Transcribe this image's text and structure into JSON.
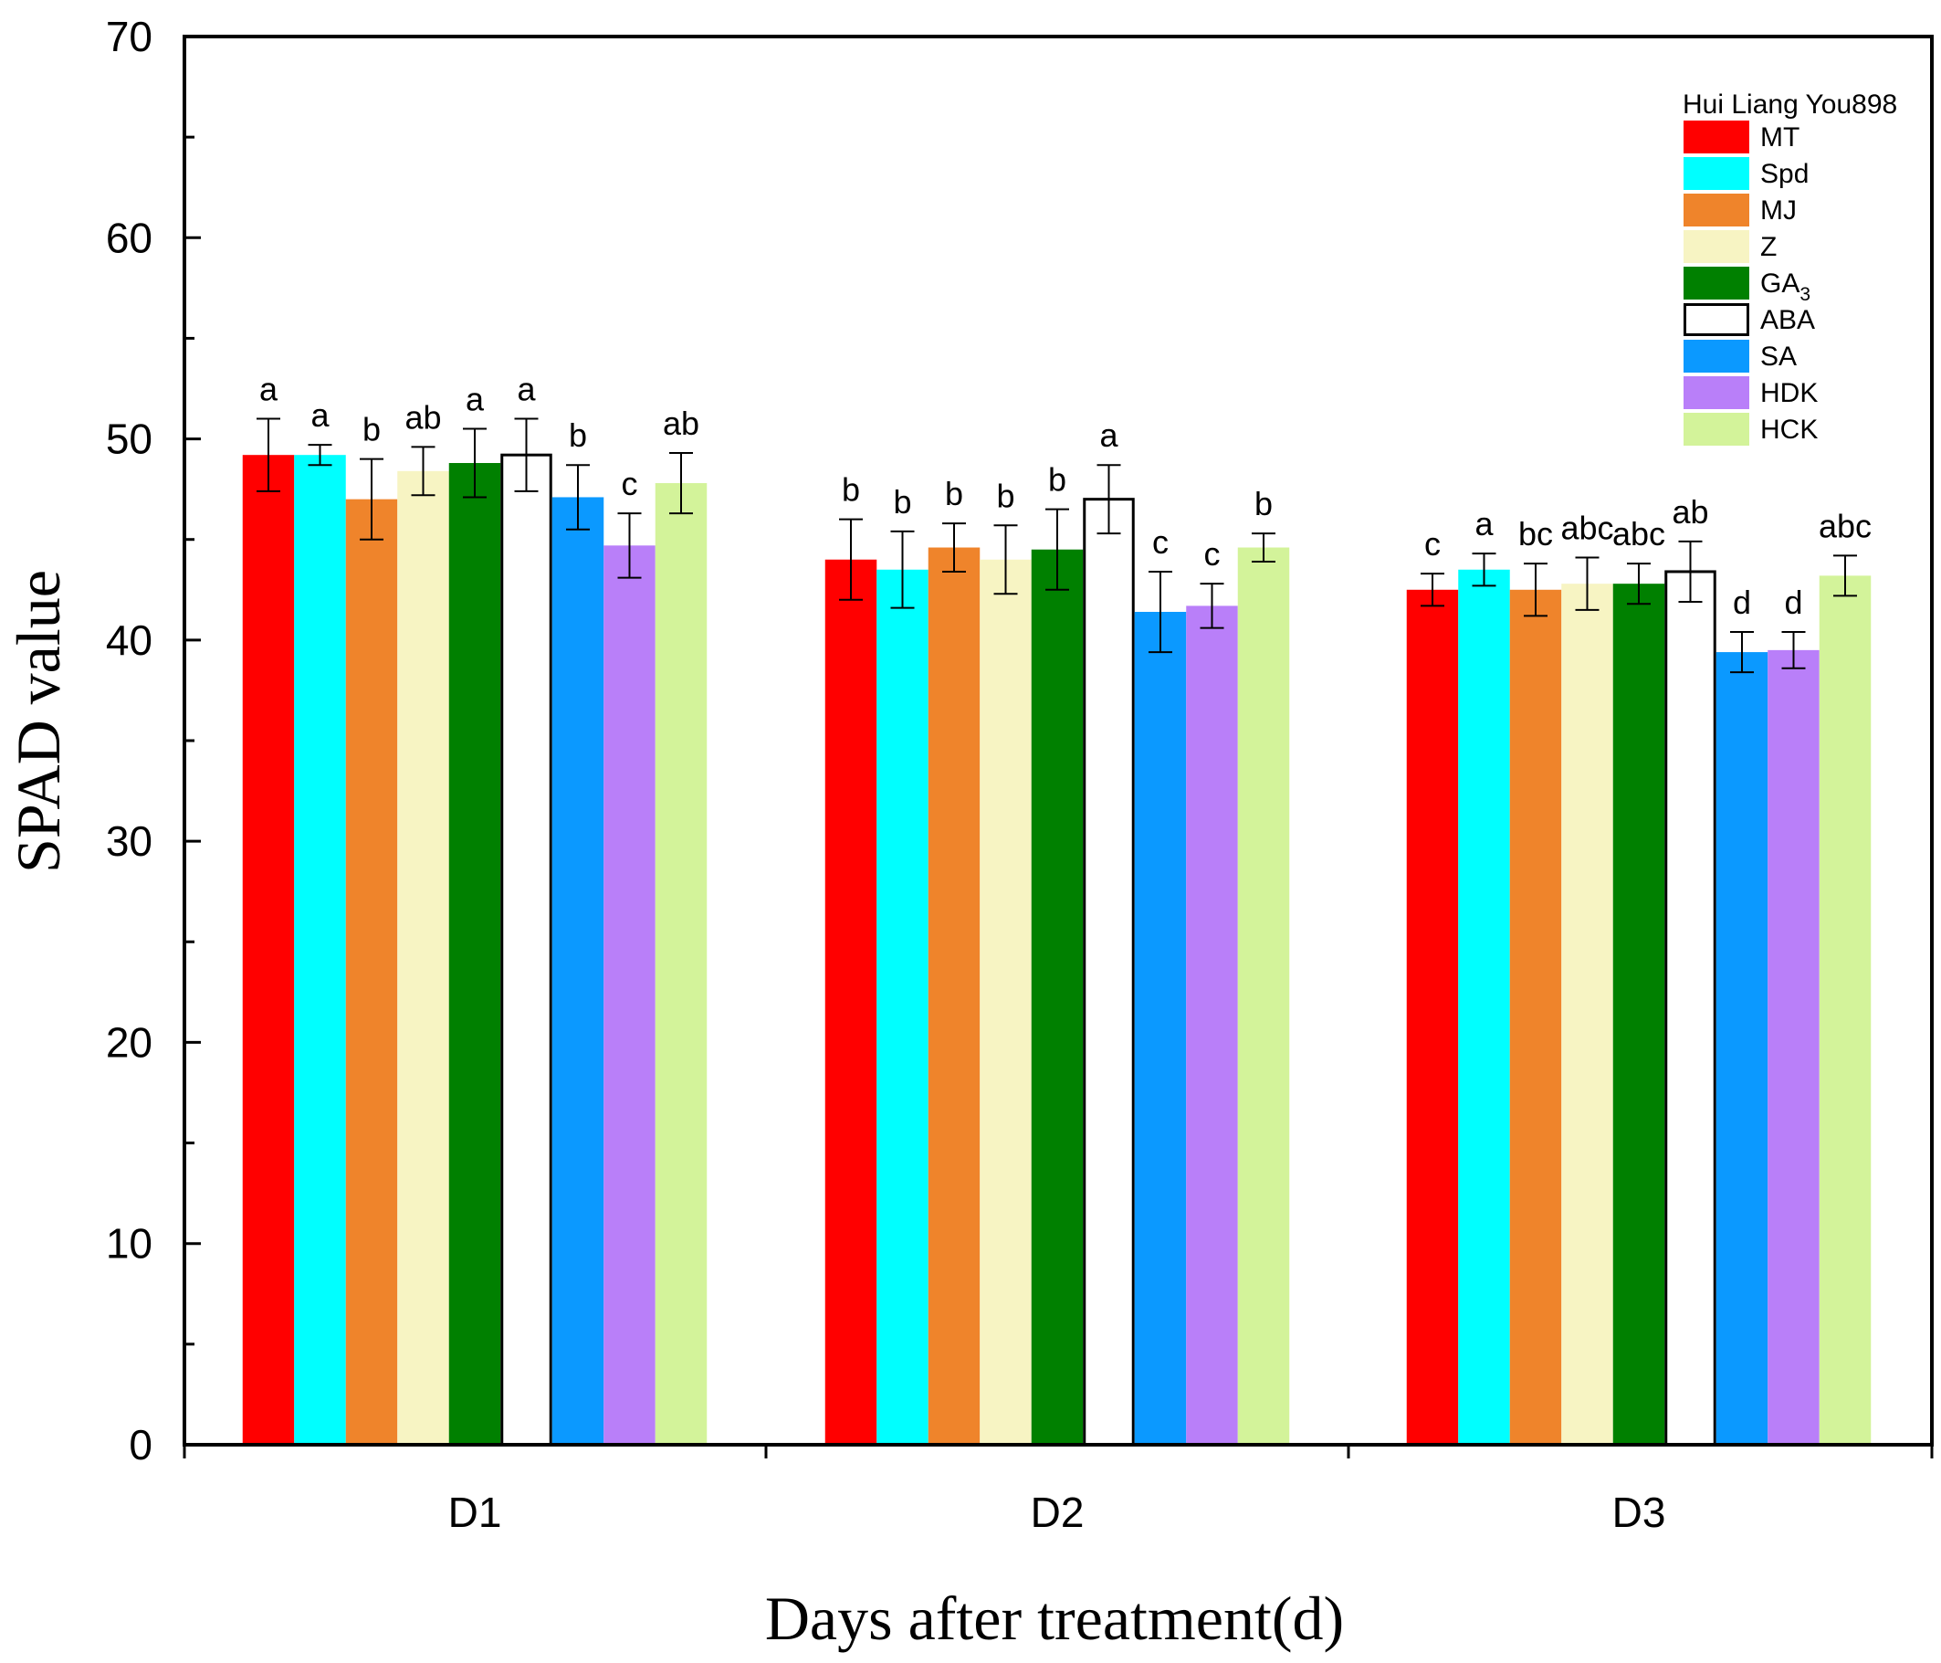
{
  "chart_data": {
    "type": "bar",
    "title": "",
    "xlabel": "Days after treatment(d)",
    "ylabel": "SPAD value",
    "ylim": [
      0,
      70
    ],
    "y_ticks": [
      0,
      10,
      20,
      30,
      40,
      50,
      60,
      70
    ],
    "categories": [
      "D1",
      "D2",
      "D3"
    ],
    "legend": {
      "title": "Hui Liang You898",
      "position": "top-right"
    },
    "series": [
      {
        "name": "MT",
        "label": "MT",
        "sub": "",
        "color": "#ff0000",
        "stroke": "#ff0000",
        "values": [
          49.2,
          44.0,
          42.5
        ],
        "errors": [
          1.8,
          2.0,
          0.8
        ],
        "letters": [
          "a",
          "b",
          "c"
        ]
      },
      {
        "name": "Spd",
        "label": "Spd",
        "sub": "",
        "color": "#00ffff",
        "stroke": "#00ffff",
        "values": [
          49.2,
          43.5,
          43.5
        ],
        "errors": [
          0.5,
          1.9,
          0.8
        ],
        "letters": [
          "a",
          "b",
          "a"
        ]
      },
      {
        "name": "MJ",
        "label": "MJ",
        "sub": "",
        "color": "#ef842b",
        "stroke": "#ef842b",
        "values": [
          47.0,
          44.6,
          42.5
        ],
        "errors": [
          2.0,
          1.2,
          1.3
        ],
        "letters": [
          "b",
          "b",
          "bc"
        ]
      },
      {
        "name": "Z",
        "label": "Z",
        "sub": "",
        "color": "#f7f4c3",
        "stroke": "#f7f4c3",
        "values": [
          48.4,
          44.0,
          42.8
        ],
        "errors": [
          1.2,
          1.7,
          1.3
        ],
        "letters": [
          "ab",
          "b",
          "abc"
        ]
      },
      {
        "name": "GA3",
        "label": "GA",
        "sub": "3",
        "color": "#008000",
        "stroke": "#008000",
        "values": [
          48.8,
          44.5,
          42.8
        ],
        "errors": [
          1.7,
          2.0,
          1.0
        ],
        "letters": [
          "a",
          "b",
          "abc"
        ]
      },
      {
        "name": "ABA",
        "label": "ABA",
        "sub": "",
        "color": "#ffffff",
        "stroke": "#000000",
        "values": [
          49.2,
          47.0,
          43.4
        ],
        "errors": [
          1.8,
          1.7,
          1.5
        ],
        "letters": [
          "a",
          "a",
          "ab"
        ]
      },
      {
        "name": "SA",
        "label": "SA",
        "sub": "",
        "color": "#0b99ff",
        "stroke": "#0b99ff",
        "values": [
          47.1,
          41.4,
          39.4
        ],
        "errors": [
          1.6,
          2.0,
          1.0
        ],
        "letters": [
          "b",
          "c",
          "d"
        ]
      },
      {
        "name": "HDK",
        "label": "HDK",
        "sub": "",
        "color": "#b97ff9",
        "stroke": "#b97ff9",
        "values": [
          44.7,
          41.7,
          39.5
        ],
        "errors": [
          1.6,
          1.1,
          0.9
        ],
        "letters": [
          "c",
          "c",
          "d"
        ]
      },
      {
        "name": "HCK",
        "label": "HCK",
        "sub": "",
        "color": "#d3f39a",
        "stroke": "#d3f39a",
        "values": [
          47.8,
          44.6,
          43.2
        ],
        "errors": [
          1.5,
          0.7,
          1.0
        ],
        "letters": [
          "ab",
          "b",
          "abc"
        ]
      }
    ]
  }
}
